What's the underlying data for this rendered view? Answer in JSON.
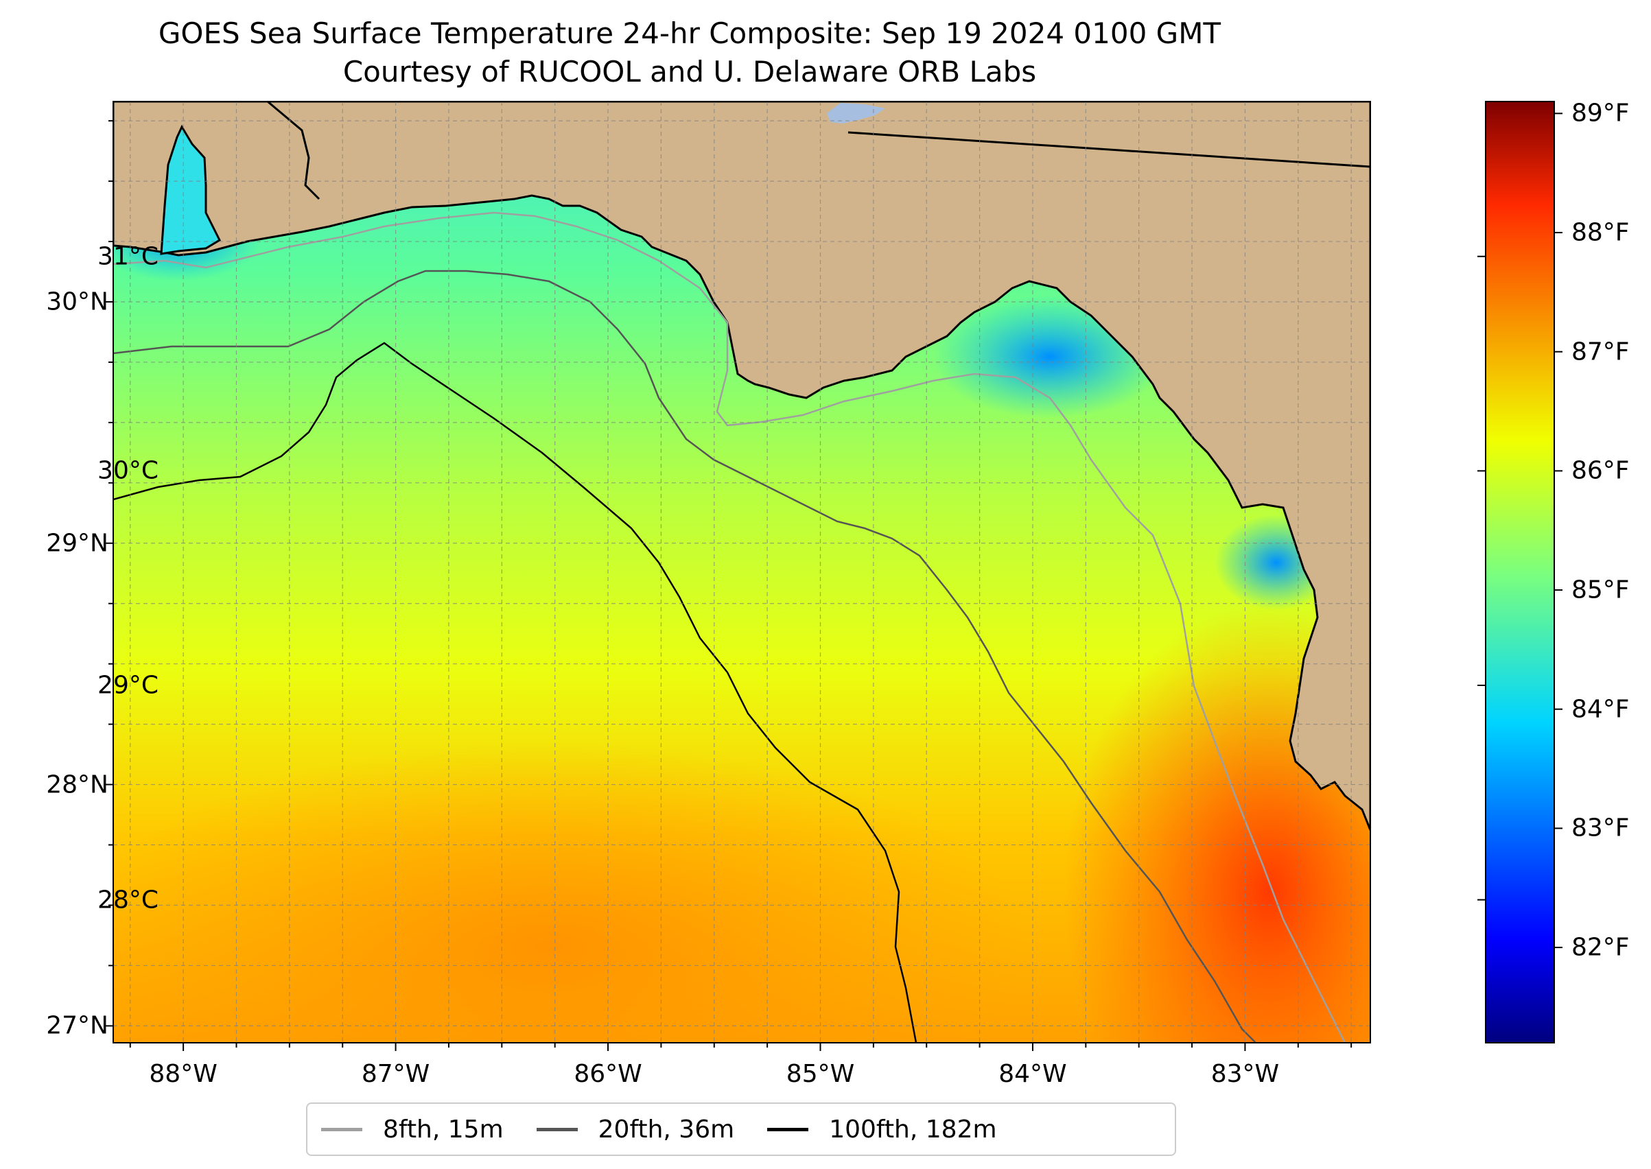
{
  "title": "GOES Sea Surface Temperature 24-hr Composite: Sep 19 2024 0100 GMT",
  "subtitle": "Courtesy of RUCOOL and U. Delaware ORB Labs",
  "map": {
    "extent": {
      "lon": [
        -88.33,
        -82.41
      ],
      "lat": [
        26.93,
        30.83
      ]
    },
    "land_color": "#D2B48C",
    "lake_color": "#A6BFE0",
    "latitude_labels": [
      {
        "value": 30,
        "text": "30°N"
      },
      {
        "value": 29,
        "text": "29°N"
      },
      {
        "value": 28,
        "text": "28°N"
      },
      {
        "value": 27,
        "text": "27°N"
      }
    ],
    "longitude_labels": [
      {
        "value": -88,
        "text": "88°W"
      },
      {
        "value": -87,
        "text": "87°W"
      },
      {
        "value": -86,
        "text": "86°W"
      },
      {
        "value": -85,
        "text": "85°W"
      },
      {
        "value": -84,
        "text": "84°W"
      },
      {
        "value": -83,
        "text": "83°W"
      }
    ],
    "grid": true
  },
  "colorbar": {
    "colormap": "jet",
    "range_f": [
      81.2,
      89.1
    ],
    "fahrenheit_labels": [
      "89°F",
      "88°F",
      "87°F",
      "86°F",
      "85°F",
      "84°F",
      "83°F",
      "82°F"
    ],
    "fahrenheit_values": [
      89,
      88,
      87,
      86,
      85,
      84,
      83,
      82
    ],
    "celsius_labels": [
      "31°C",
      "30°C",
      "29°C",
      "28°C"
    ],
    "celsius_values": [
      31,
      30,
      29,
      28
    ]
  },
  "legend": [
    {
      "label": "8fth, 15m",
      "color": "#a0a0a0"
    },
    {
      "label": "20fth, 36m",
      "color": "#555555"
    },
    {
      "label": "100fth, 182m",
      "color": "#000000"
    }
  ]
}
